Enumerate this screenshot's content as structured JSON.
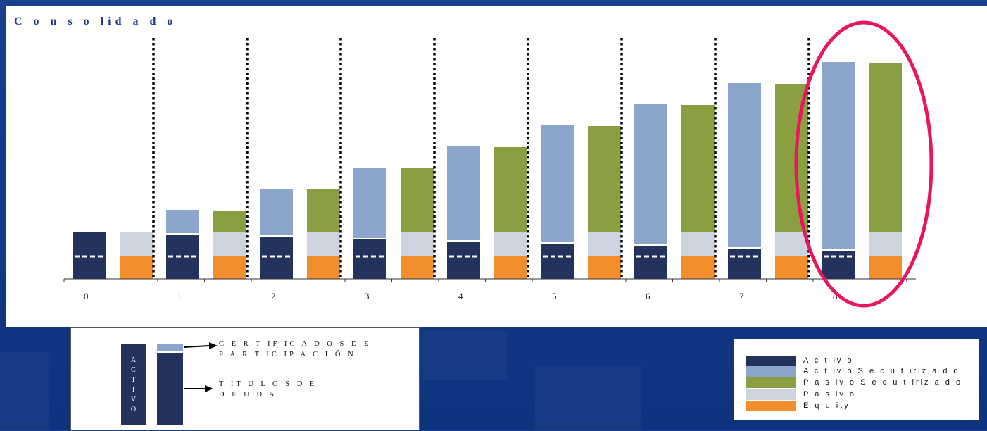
{
  "title": "C o n s o lid a d o",
  "colors": {
    "activo": "#24335e",
    "activo_secutirizado": "#8ba5cc",
    "pasivo_secutirizado": "#8a9f42",
    "pasivo": "#cdd4e0",
    "equity": "#f28e2b",
    "highlight": "#e8175d"
  },
  "chart_data": {
    "type": "bar",
    "categories": [
      "0",
      "1",
      "2",
      "3",
      "4",
      "5",
      "6",
      "7",
      "8"
    ],
    "series": [
      {
        "name": "Activo",
        "values": [
          67,
          63,
          60,
          56,
          53,
          50,
          47,
          43,
          40
        ]
      },
      {
        "name": "Activo Secutirizado",
        "values": [
          0,
          33,
          66,
          100,
          133,
          167,
          200,
          233,
          266
        ]
      },
      {
        "name": "Pasivo Secutirizado",
        "values": [
          0,
          30,
          60,
          90,
          120,
          150,
          180,
          210,
          240
        ]
      },
      {
        "name": "Pasivo",
        "values": [
          34,
          34,
          34,
          34,
          34,
          34,
          34,
          34,
          34
        ]
      },
      {
        "name": "Equity",
        "values": [
          33,
          33,
          33,
          33,
          33,
          33,
          33,
          33,
          33
        ]
      }
    ],
    "highlight_category": "8",
    "legend_position": "bottom-right"
  },
  "note": {
    "activo_letters": [
      "A",
      "C",
      "T",
      "I",
      "V",
      "O"
    ],
    "certificados_line1": "C E R T IF IC A D O S  D E",
    "certificados_line2": "P A R T IC IP A C I Ó N",
    "titulos_line1": "T ÍT U L O S  D E",
    "titulos_line2": "D E U D A"
  },
  "legend": {
    "items": [
      {
        "label": "A c t iv o",
        "color_key": "activo"
      },
      {
        "label": "A c t iv o  S e c u t iriz a d o",
        "color_key": "activo_secutirizado"
      },
      {
        "label": "P a s iv o  S e c u t iriz a d o",
        "color_key": "pasivo_secutirizado"
      },
      {
        "label": "P a s iv o",
        "color_key": "pasivo"
      },
      {
        "label": "E q u ity",
        "color_key": "equity"
      }
    ]
  }
}
